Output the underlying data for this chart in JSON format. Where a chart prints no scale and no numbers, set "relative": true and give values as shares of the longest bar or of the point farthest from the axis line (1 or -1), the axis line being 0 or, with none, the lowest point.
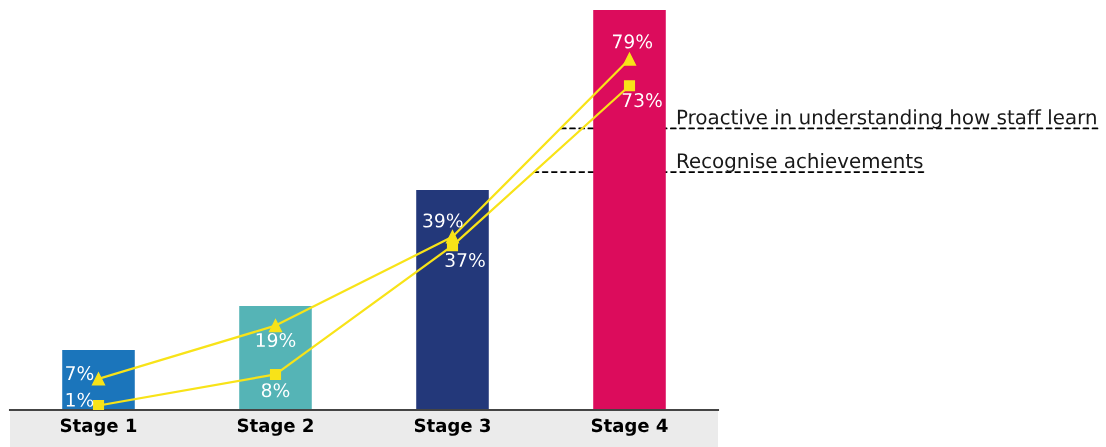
{
  "chart_data": [
    {
      "type": "bar",
      "relative": true,
      "categories": [
        "Stage 1",
        "Stage 2",
        "Stage 3",
        "Stage 4"
      ],
      "colors": [
        "#1b75bb",
        "#55b4b6",
        "#23387a",
        "#dc0c5c"
      ],
      "values": [
        0.15,
        0.26,
        0.55,
        1
      ]
    },
    {
      "type": "line",
      "categories": [
        null,
        null,
        null,
        null
      ],
      "tick_labels": false,
      "series": [
        {
          "name": "Proactive in understanding how staff learn",
          "color": "#f8e318",
          "marker": "triangle",
          "values": [
            7,
            19,
            39,
            79
          ],
          "value_labels": [
            "7%",
            "19%",
            "39%",
            "79%"
          ]
        },
        {
          "name": "Recognise achievements",
          "color": "#f8e318",
          "marker": "square",
          "values": [
            1,
            8,
            37,
            73
          ],
          "value_labels": [
            "1%",
            "8%",
            "37%",
            "73%"
          ]
        }
      ]
    }
  ]
}
